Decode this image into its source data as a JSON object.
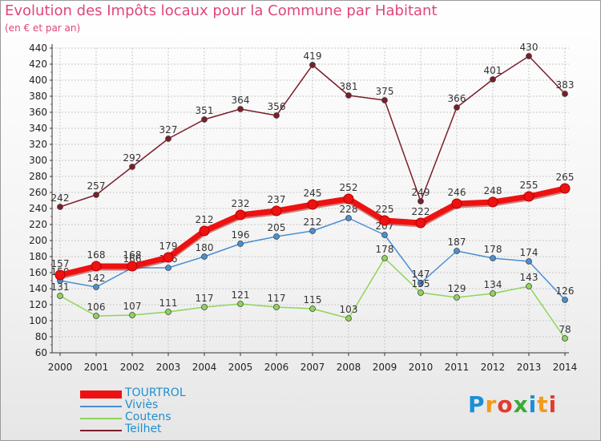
{
  "header": {
    "title": "Evolution des Impôts locaux pour la Commune par Habitant",
    "subtitle": "(en € et par an)"
  },
  "logo": {
    "text": "Proxiti",
    "letter_colors": [
      "#1a8fd6",
      "#f39a1c",
      "#e33b2f",
      "#3aaa35",
      "#1a8fd6",
      "#f39a1c",
      "#e33b2f"
    ]
  },
  "chart_data": {
    "type": "line",
    "title": "Evolution des Impôts locaux pour la Commune par Habitant",
    "subtitle": "(en € et par an)",
    "xlabel": "",
    "ylabel": "",
    "categories": [
      "2000",
      "2001",
      "2002",
      "2003",
      "2004",
      "2005",
      "2006",
      "2007",
      "2008",
      "2009",
      "2010",
      "2011",
      "2012",
      "2013",
      "2014"
    ],
    "ylim": [
      60,
      440
    ],
    "yticks": [
      60,
      80,
      100,
      120,
      140,
      160,
      180,
      200,
      220,
      240,
      260,
      280,
      300,
      320,
      340,
      360,
      380,
      400,
      420,
      440
    ],
    "grid": true,
    "legend_position": "bottom-left",
    "series": [
      {
        "name": "Teilhet",
        "color": "#7a1e2a",
        "values": [
          242,
          257,
          292,
          327,
          351,
          364,
          356,
          419,
          381,
          375,
          249,
          366,
          401,
          430,
          383
        ],
        "labels": [
          "242",
          "257",
          "292",
          "327",
          "351",
          "364",
          "356",
          "419",
          "381",
          "375",
          "249",
          "366",
          "401",
          "430",
          "383"
        ]
      },
      {
        "name": "Viviès",
        "color": "#4a8fd0",
        "values": [
          150,
          142,
          166,
          166,
          180,
          196,
          205,
          212,
          228,
          207,
          147,
          187,
          178,
          174,
          126
        ],
        "labels": [
          "150",
          "142",
          "166",
          "166",
          "180",
          "196",
          "205",
          "212",
          "228",
          "207",
          "147",
          "187",
          "178",
          "174",
          "126"
        ]
      },
      {
        "name": "Coutens",
        "color": "#8fd45a",
        "values": [
          131,
          106,
          107,
          111,
          117,
          121,
          117,
          115,
          103,
          178,
          135,
          129,
          134,
          143,
          78
        ],
        "labels": [
          "131",
          "106",
          "107",
          "111",
          "117",
          "121",
          "117",
          "115",
          "103",
          "178",
          "135",
          "129",
          "134",
          "143",
          "78"
        ]
      },
      {
        "name": "TOURTROL",
        "color": "#ee1111",
        "values": [
          157,
          168,
          168,
          179,
          212,
          232,
          237,
          245,
          252,
          225,
          222,
          246,
          248,
          255,
          265
        ],
        "labels": [
          "157",
          "168",
          "168",
          "179",
          "212",
          "232",
          "237",
          "245",
          "252",
          "225",
          "222",
          "246",
          "248",
          "255",
          "265"
        ]
      }
    ],
    "legend": [
      "TOURTROL",
      "Viviès",
      "Coutens",
      "Teilhet"
    ]
  }
}
